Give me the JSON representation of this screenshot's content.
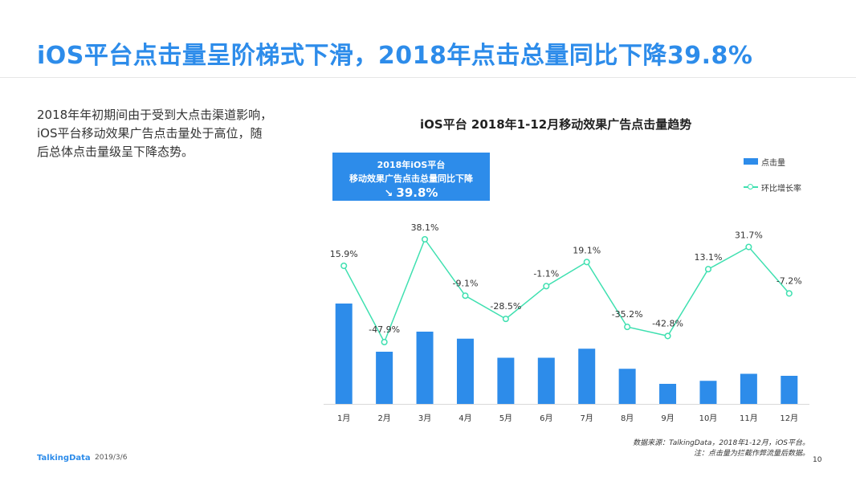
{
  "title": "iOS平台点击量呈阶梯式下滑，2018年点击总量同比下降39.8%",
  "description": [
    "2018年年初期间由于受到大点击渠道影响，",
    "iOS平台移动效果广告点击量处于高位，随",
    "后总体点击量级呈下降态势。"
  ],
  "callout": {
    "line1": "2018年iOS平台",
    "line2": "移动效果广告点击总量同比下降",
    "value": "39.8%"
  },
  "source": {
    "line1": "数据来源：TalkingData，2018年1-12月，iOS平台。",
    "line2": "注：点击量为拦截作弊流量后数据。"
  },
  "footer": {
    "brand": "TalkingData",
    "date": "2019/3/6",
    "page": "10"
  },
  "colors": {
    "accent": "#2d8cea",
    "line": "#3fe0b0"
  },
  "chart_data": {
    "type": "bar",
    "title": "iOS平台  2018年1-12月移动效果广告点击量趋势",
    "categories": [
      "1月",
      "2月",
      "3月",
      "4月",
      "5月",
      "6月",
      "7月",
      "8月",
      "9月",
      "10月",
      "11月",
      "12月"
    ],
    "series": [
      {
        "name": "点击量",
        "type": "bar",
        "axis": "left",
        "values": [
          100,
          52,
          72,
          65,
          46,
          46,
          55,
          35,
          20,
          23,
          30,
          28
        ]
      },
      {
        "name": "环比增长率",
        "type": "line",
        "axis": "right",
        "values": [
          15.9,
          -47.9,
          38.1,
          -9.1,
          -28.5,
          -1.1,
          19.1,
          -35.2,
          -42.8,
          13.1,
          31.7,
          -7.2
        ],
        "labels": [
          "15.9%",
          "-47.9%",
          "38.1%",
          "-9.1%",
          "-28.5%",
          "-1.1%",
          "19.1%",
          "-35.2%",
          "-42.8%",
          "13.1%",
          "31.7%",
          "-7.2%"
        ]
      }
    ],
    "ylim_left": [
      0,
      100
    ],
    "ylim_right": [
      -60,
      45
    ],
    "legend": "right",
    "grid": false
  }
}
